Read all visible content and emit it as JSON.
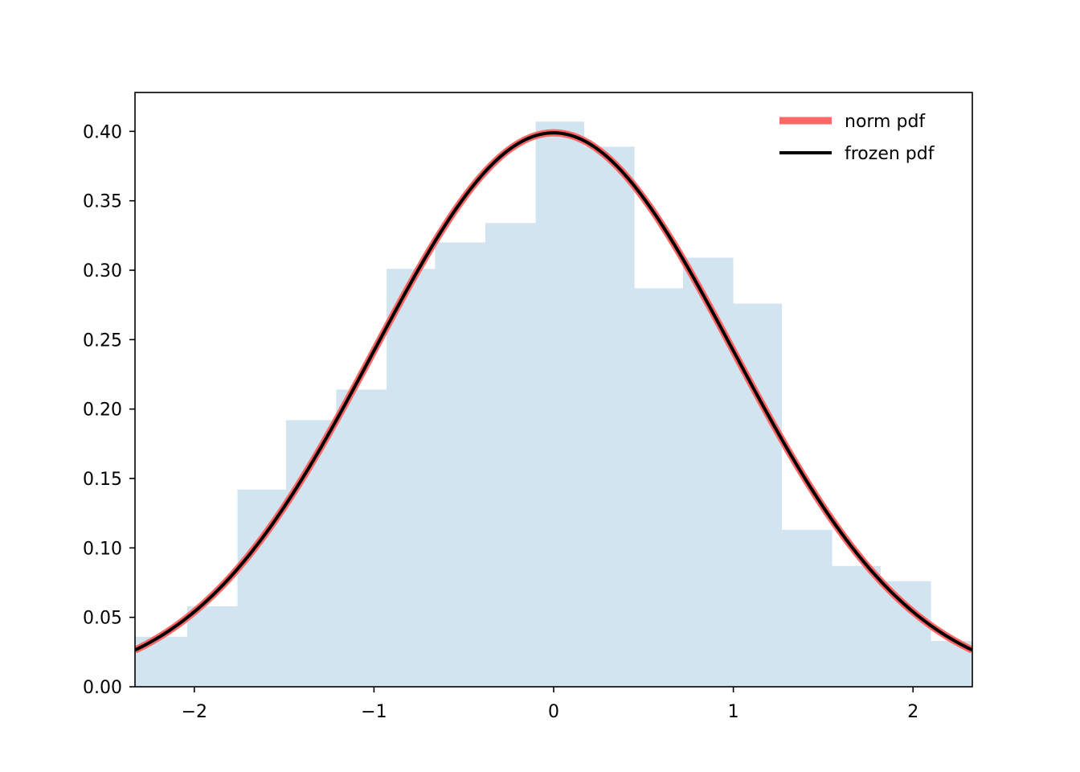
{
  "chart_data": {
    "type": "histogram+line",
    "title": "",
    "xlabel": "",
    "ylabel": "",
    "xlim": [
      -2.33,
      2.33
    ],
    "ylim": [
      0,
      0.428
    ],
    "grid": false,
    "x_ticks": [
      {
        "value": -2,
        "label": "−2"
      },
      {
        "value": -1,
        "label": "−1"
      },
      {
        "value": 0,
        "label": "0"
      },
      {
        "value": 1,
        "label": "1"
      },
      {
        "value": 2,
        "label": "2"
      }
    ],
    "y_ticks": [
      {
        "value": 0.0,
        "label": "0.00"
      },
      {
        "value": 0.05,
        "label": "0.05"
      },
      {
        "value": 0.1,
        "label": "0.10"
      },
      {
        "value": 0.15,
        "label": "0.15"
      },
      {
        "value": 0.2,
        "label": "0.20"
      },
      {
        "value": 0.25,
        "label": "0.25"
      },
      {
        "value": 0.3,
        "label": "0.30"
      },
      {
        "value": 0.35,
        "label": "0.35"
      },
      {
        "value": 0.4,
        "label": "0.40"
      }
    ],
    "histogram": {
      "color": "#1f77b4",
      "alpha": 0.2,
      "bin_edges": [
        -2.58,
        -2.04,
        -1.76,
        -1.49,
        -1.21,
        -0.93,
        -0.66,
        -0.38,
        -0.1,
        0.17,
        0.45,
        0.72,
        1.0,
        1.27,
        1.55,
        1.82,
        2.1,
        2.37
      ],
      "density": [
        0.036,
        0.058,
        0.142,
        0.192,
        0.214,
        0.301,
        0.32,
        0.334,
        0.407,
        0.389,
        0.287,
        0.309,
        0.276,
        0.113,
        0.087,
        0.076,
        0.033
      ]
    },
    "series": [
      {
        "name": "norm pdf",
        "function": "normal_pdf",
        "mean": 0,
        "std": 1,
        "color": "#ff6666",
        "linewidth": "thick"
      },
      {
        "name": "frozen pdf",
        "function": "normal_pdf",
        "mean": 0,
        "std": 1,
        "color": "#000000",
        "linewidth": "medium"
      }
    ],
    "legend": {
      "position": "top-right",
      "frameless": true
    }
  }
}
